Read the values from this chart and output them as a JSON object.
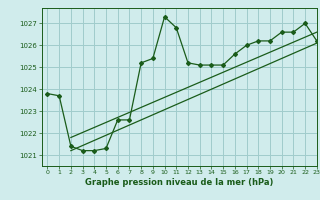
{
  "title": "Graphe pression niveau de la mer (hPa)",
  "bg_color": "#d0ecec",
  "grid_color": "#a0cccc",
  "line_color": "#1a5c1a",
  "xlim": [
    -0.5,
    23
  ],
  "ylim": [
    1020.5,
    1027.7
  ],
  "yticks": [
    1021,
    1022,
    1023,
    1024,
    1025,
    1026,
    1027
  ],
  "xticks": [
    0,
    1,
    2,
    3,
    4,
    5,
    6,
    7,
    8,
    9,
    10,
    11,
    12,
    13,
    14,
    15,
    16,
    17,
    18,
    19,
    20,
    21,
    22,
    23
  ],
  "series1_x": [
    0,
    1,
    2,
    3,
    4,
    5,
    6,
    7,
    8,
    9,
    10,
    11,
    12,
    13,
    14,
    15,
    16,
    17,
    18,
    19,
    20,
    21,
    22,
    23
  ],
  "series1_y": [
    1023.8,
    1023.7,
    1021.4,
    1021.2,
    1021.2,
    1021.3,
    1022.6,
    1022.6,
    1025.2,
    1025.4,
    1027.3,
    1026.8,
    1025.2,
    1025.1,
    1025.1,
    1025.1,
    1025.6,
    1026.0,
    1026.2,
    1026.2,
    1026.6,
    1026.6,
    1027.0,
    1026.2
  ],
  "series2_x": [
    2,
    23
  ],
  "series2_y": [
    1021.2,
    1026.1
  ],
  "series3_x": [
    2,
    23
  ],
  "series3_y": [
    1021.8,
    1026.6
  ],
  "ylabel_fontsize": 5.5,
  "xlabel_fontsize": 6.0
}
